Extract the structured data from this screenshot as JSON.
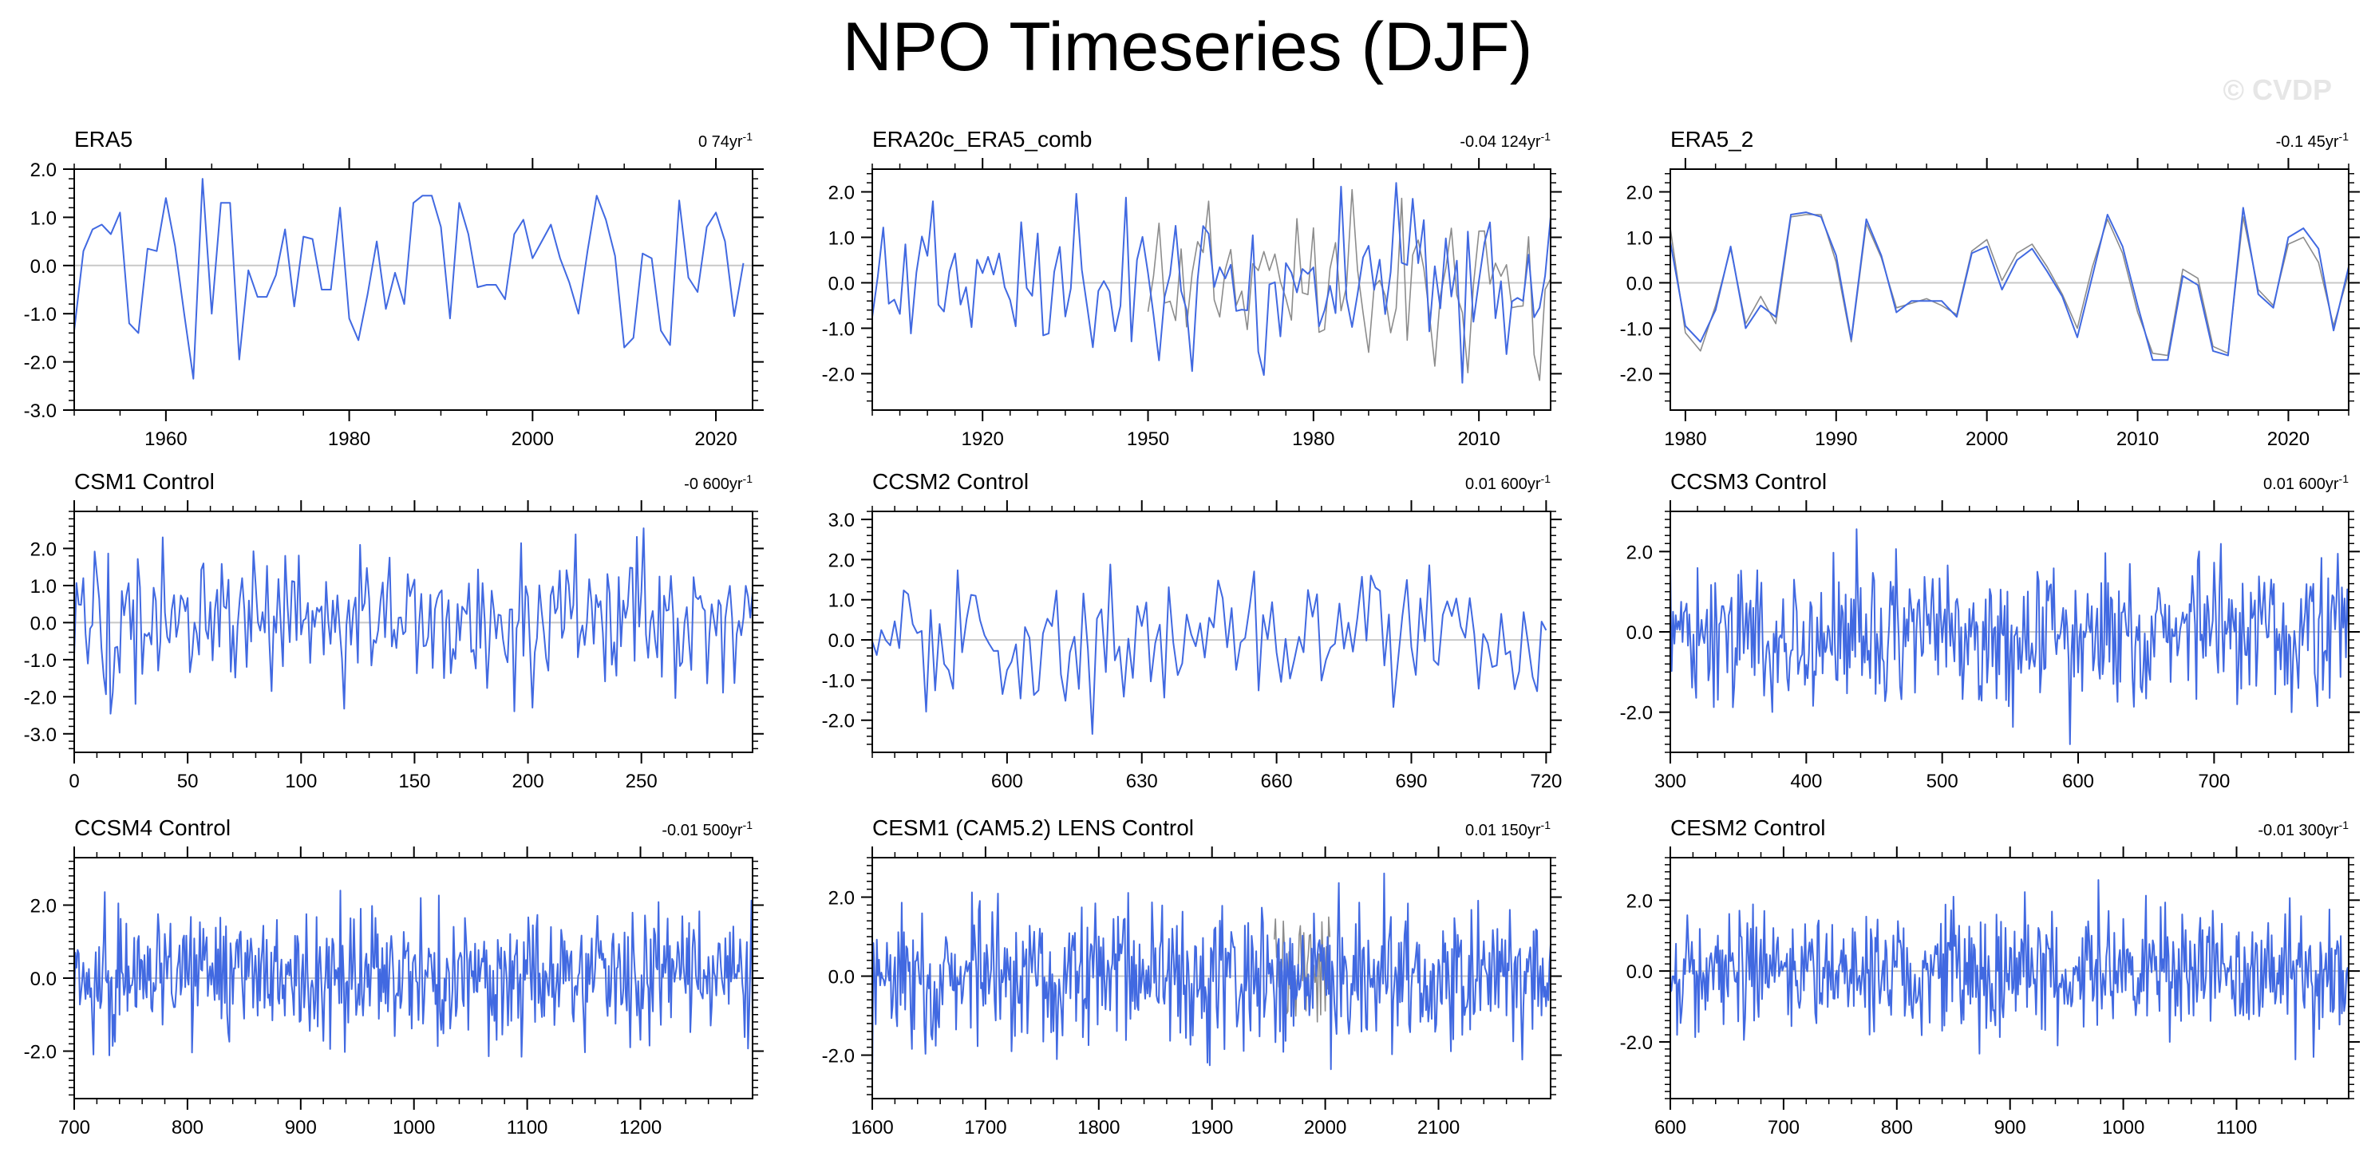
{
  "title": "NPO Timeseries (DJF)",
  "watermark": "© CVDP",
  "colors": {
    "series": "#4169e1",
    "comparison": "#8c8c8c",
    "zeroline": "#c8c8c8",
    "axis": "#000000"
  },
  "chart_data": [
    {
      "type": "line",
      "title": "ERA5",
      "trend": "0 74yr",
      "trend_unit_sup": "-1",
      "xlim": [
        1950,
        2024
      ],
      "ylim": [
        -3.0,
        2.0
      ],
      "xticks": [
        1960,
        1980,
        2000,
        2020
      ],
      "yticks": [
        2.0,
        1.0,
        0.0,
        -1.0,
        -2.0,
        -3.0
      ],
      "ytick_labels": [
        "2.0",
        "1.0",
        "0.0",
        "-1.0",
        "-2.0",
        "-3.0"
      ],
      "series": [
        {
          "x_start": 1950,
          "x_step": 1,
          "values": [
            -1.35,
            0.3,
            0.75,
            0.85,
            0.65,
            1.1,
            -1.2,
            -1.4,
            0.35,
            0.3,
            1.4,
            0.4,
            -1.0,
            -2.35,
            1.8,
            -1.0,
            1.3,
            1.3,
            -1.95,
            -0.1,
            -0.65,
            -0.65,
            -0.2,
            0.75,
            -0.85,
            0.6,
            0.55,
            -0.5,
            -0.5,
            1.2,
            -1.1,
            -1.55,
            -0.6,
            0.5,
            -0.9,
            -0.15,
            -0.8,
            1.3,
            1.45,
            1.45,
            0.8,
            -1.1,
            1.3,
            0.65,
            -0.45,
            -0.4,
            -0.4,
            -0.7,
            0.65,
            0.95,
            0.15,
            0.5,
            0.85,
            0.15,
            -0.35,
            -1.0,
            0.3,
            1.45,
            0.95,
            0.2,
            -1.7,
            -1.5,
            0.25,
            0.15,
            -1.35,
            -1.65,
            1.35,
            -0.25,
            -0.55,
            0.8,
            1.1,
            0.5,
            -1.05,
            0.05
          ]
        }
      ]
    },
    {
      "type": "line",
      "title": "ERA20c_ERA5_comb",
      "trend": "-0.04 124yr",
      "trend_unit_sup": "-1",
      "xlim": [
        1900,
        2023
      ],
      "ylim": [
        -2.8,
        2.5
      ],
      "xticks": [
        1920,
        1950,
        1980,
        2010
      ],
      "yticks": [
        2.0,
        1.0,
        0.0,
        -1.0,
        -2.0
      ],
      "ytick_labels": [
        "2.0",
        "1.0",
        "0.0",
        "-1.0",
        "-2.0"
      ],
      "series": [
        {
          "x_start": 1900,
          "x_step": 1,
          "seed": 11,
          "amp": 0.95,
          "clip": 2.2
        },
        {
          "x_start": 1950,
          "x_step": 1,
          "seed": 11,
          "offset_seed": 5,
          "amp": 0.95,
          "clip": 2.2,
          "comparison": true
        }
      ]
    },
    {
      "type": "line",
      "title": "ERA5_2",
      "trend": "-0.1 45yr",
      "trend_unit_sup": "-1",
      "xlim": [
        1979,
        2024
      ],
      "ylim": [
        -2.8,
        2.5
      ],
      "xticks": [
        1980,
        1990,
        2000,
        2010,
        2020
      ],
      "yticks": [
        2.0,
        1.0,
        0.0,
        -1.0,
        -2.0
      ],
      "ytick_labels": [
        "2.0",
        "1.0",
        "0.0",
        "-1.0",
        "-2.0"
      ],
      "series": [
        {
          "x_start": 1979,
          "x_step": 1,
          "values": [
            0.9,
            -0.95,
            -1.3,
            -0.6,
            0.8,
            -1.0,
            -0.5,
            -0.75,
            1.5,
            1.55,
            1.45,
            0.6,
            -1.25,
            1.4,
            0.6,
            -0.65,
            -0.4,
            -0.4,
            -0.4,
            -0.75,
            0.65,
            0.8,
            -0.15,
            0.5,
            0.75,
            0.25,
            -0.3,
            -1.2,
            0.15,
            1.5,
            0.8,
            -0.5,
            -1.7,
            -1.7,
            0.15,
            -0.05,
            -1.5,
            -1.6,
            1.65,
            -0.25,
            -0.55,
            1.0,
            1.2,
            0.75,
            -1.05,
            0.35
          ]
        },
        {
          "x_start": 1979,
          "x_step": 1,
          "comparison": true,
          "values": [
            1.2,
            -1.1,
            -1.5,
            -0.5,
            0.75,
            -0.9,
            -0.3,
            -0.9,
            1.45,
            1.5,
            1.5,
            0.45,
            -1.3,
            1.3,
            0.55,
            -0.55,
            -0.45,
            -0.35,
            -0.5,
            -0.7,
            0.7,
            0.95,
            0.05,
            0.65,
            0.85,
            0.35,
            -0.25,
            -1.0,
            0.35,
            1.4,
            0.65,
            -0.65,
            -1.55,
            -1.6,
            0.3,
            0.1,
            -1.4,
            -1.55,
            1.45,
            -0.15,
            -0.5,
            0.85,
            1.0,
            0.45,
            -0.95,
            0.2
          ]
        }
      ]
    },
    {
      "type": "line",
      "title": "CSM1 Control",
      "trend": "-0 600yr",
      "trend_unit_sup": "-1",
      "xlim": [
        0,
        299
      ],
      "ylim": [
        -3.5,
        3.0
      ],
      "xticks": [
        0,
        50,
        100,
        150,
        200,
        250
      ],
      "yticks": [
        2.0,
        1.0,
        0.0,
        -1.0,
        -2.0,
        -3.0
      ],
      "ytick_labels": [
        "2.0",
        "1.0",
        "0.0",
        "-1.0",
        "-2.0",
        "-3.0"
      ],
      "series": [
        {
          "x_start": 0,
          "x_step": 1,
          "n": 300,
          "seed": 21,
          "amp": 0.95,
          "clip": 3.0
        }
      ]
    },
    {
      "type": "line",
      "title": "CCSM2 Control",
      "trend": "0.01 600yr",
      "trend_unit_sup": "-1",
      "xlim": [
        570,
        721
      ],
      "ylim": [
        -2.8,
        3.2
      ],
      "xticks": [
        600,
        630,
        660,
        690,
        720
      ],
      "yticks": [
        3.0,
        2.0,
        1.0,
        0.0,
        -1.0,
        -2.0
      ],
      "ytick_labels": [
        "3.0",
        "2.0",
        "1.0",
        "0.0",
        "-1.0",
        "-2.0"
      ],
      "series": [
        {
          "x_start": 570,
          "x_step": 1,
          "n": 151,
          "seed": 33,
          "amp": 0.9,
          "clip": 2.7
        }
      ]
    },
    {
      "type": "line",
      "title": "CCSM3 Control",
      "trend": "0.01 600yr",
      "trend_unit_sup": "-1",
      "xlim": [
        300,
        799
      ],
      "ylim": [
        -3.0,
        3.0
      ],
      "xticks": [
        300,
        400,
        500,
        600,
        700
      ],
      "yticks": [
        2.0,
        0.0,
        -2.0
      ],
      "ytick_labels": [
        "2.0",
        "0.0",
        "-2.0"
      ],
      "series": [
        {
          "x_start": 300,
          "x_step": 1,
          "n": 500,
          "seed": 47,
          "amp": 0.9,
          "clip": 2.8
        }
      ]
    },
    {
      "type": "line",
      "title": "CCSM4 Control",
      "trend": "-0.01 500yr",
      "trend_unit_sup": "-1",
      "xlim": [
        700,
        1299
      ],
      "ylim": [
        -3.3,
        3.3
      ],
      "xticks": [
        700,
        800,
        900,
        1000,
        1100,
        1200
      ],
      "yticks": [
        2.0,
        0.0,
        -2.0
      ],
      "ytick_labels": [
        "2.0",
        "0.0",
        "-2.0"
      ],
      "series": [
        {
          "x_start": 700,
          "x_step": 1,
          "n": 600,
          "seed": 59,
          "amp": 0.9,
          "clip": 2.85
        }
      ]
    },
    {
      "type": "line",
      "title": "CESM1 (CAM5.2) LENS Control",
      "trend": "0.01 150yr",
      "trend_unit_sup": "-1",
      "xlim": [
        1600,
        2199
      ],
      "ylim": [
        -3.1,
        3.0
      ],
      "xticks": [
        1600,
        1700,
        1800,
        1900,
        2000,
        2100
      ],
      "yticks": [
        2.0,
        0.0,
        -2.0
      ],
      "ytick_labels": [
        "2.0",
        "0.0",
        "-2.0"
      ],
      "series": [
        {
          "x_start": 1600,
          "x_step": 1,
          "n": 600,
          "seed": 71,
          "amp": 0.9,
          "clip": 2.6
        },
        {
          "x_start": 1955,
          "x_step": 1,
          "n": 50,
          "seed": 73,
          "amp": 0.8,
          "clip": 2.5,
          "comparison": true
        }
      ]
    },
    {
      "type": "line",
      "title": "CESM2 Control",
      "trend": "-0.01 300yr",
      "trend_unit_sup": "-1",
      "xlim": [
        600,
        1199
      ],
      "ylim": [
        -3.6,
        3.2
      ],
      "xticks": [
        600,
        700,
        800,
        900,
        1000,
        1100
      ],
      "yticks": [
        2.0,
        0.0,
        -2.0
      ],
      "ytick_labels": [
        "2.0",
        "0.0",
        "-2.0"
      ],
      "series": [
        {
          "x_start": 600,
          "x_step": 1,
          "n": 600,
          "seed": 83,
          "amp": 0.9,
          "clip": 3.4
        }
      ]
    }
  ]
}
